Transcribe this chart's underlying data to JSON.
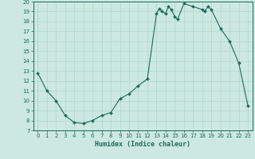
{
  "x": [
    0,
    1,
    2,
    3,
    4,
    5,
    6,
    7,
    8,
    9,
    10,
    11,
    12,
    13,
    13.3,
    13.6,
    14,
    14.3,
    14.6,
    15,
    15.3,
    16,
    17,
    18,
    18.3,
    18.6,
    19,
    20,
    21,
    22,
    23
  ],
  "y": [
    12.8,
    11.0,
    10.0,
    8.5,
    7.8,
    7.7,
    8.0,
    8.5,
    8.8,
    10.2,
    10.7,
    11.5,
    12.2,
    18.8,
    19.3,
    19.0,
    18.8,
    19.5,
    19.2,
    18.5,
    18.2,
    19.8,
    19.5,
    19.2,
    19.0,
    19.5,
    19.2,
    17.3,
    16.0,
    13.8,
    9.5
  ],
  "line_color": "#1a6b5a",
  "marker_color": "#1a6b5a",
  "bg_color": "#cde8e0",
  "grid_color": "#b0d8cc",
  "xlabel": "Humidex (Indice chaleur)",
  "ylim": [
    7,
    20
  ],
  "xlim_min": -0.5,
  "xlim_max": 23.5,
  "yticks": [
    7,
    8,
    9,
    10,
    11,
    12,
    13,
    14,
    15,
    16,
    17,
    18,
    19,
    20
  ],
  "xticks": [
    0,
    1,
    2,
    3,
    4,
    5,
    6,
    7,
    8,
    9,
    10,
    11,
    12,
    13,
    14,
    15,
    16,
    17,
    18,
    19,
    20,
    21,
    22,
    23
  ]
}
